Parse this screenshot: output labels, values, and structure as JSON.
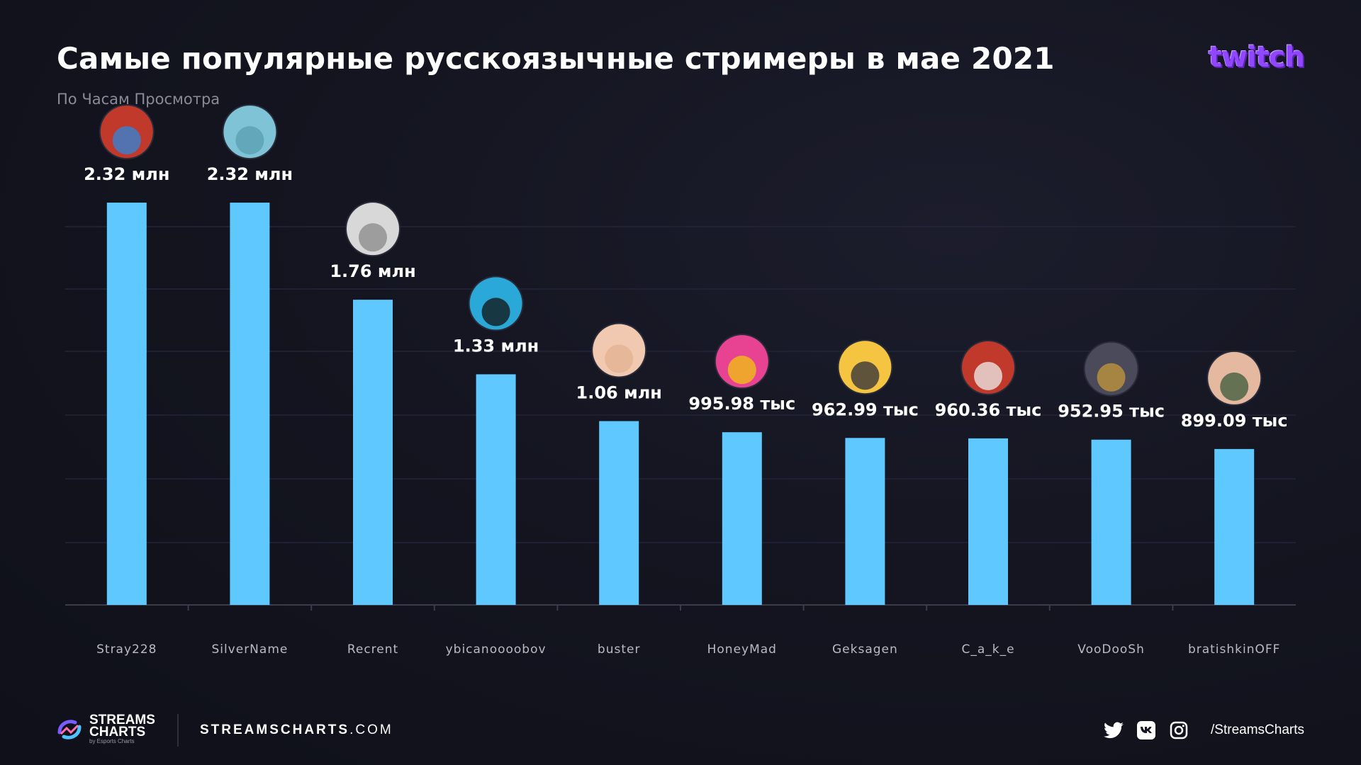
{
  "header": {
    "title": "Самые популярные русскоязычные стримеры в мае 2021",
    "subtitle": "По Часам Просмотра",
    "brand_logo": "twitch"
  },
  "footer": {
    "logo_line1": "STREAMS",
    "logo_line2": "CHARTS",
    "logo_sub": "by Esports Charts",
    "site_bold": "STREAMSCHARTS",
    "site_rest": ".COM",
    "handle": "/StreamsCharts",
    "icons": [
      "twitter-icon",
      "vk-icon",
      "instagram-icon"
    ]
  },
  "colors": {
    "bar": "#5ec8ff",
    "accent": "#9146ff",
    "background": "#141520"
  },
  "chart_data": {
    "type": "bar",
    "categories": [
      "Stray228",
      "SilverName",
      "Recrent",
      "ybicanoooobov",
      "buster",
      "HoneyMad",
      "Geksagen",
      "C_a_k_e",
      "VooDooSh",
      "bratishkinOFF"
    ],
    "values": [
      2320000,
      2320000,
      1760000,
      1330000,
      1060000,
      995980,
      962990,
      960360,
      952950,
      899090
    ],
    "data_labels": [
      "2.32 млн",
      "2.32 млн",
      "1.76 млн",
      "1.33 млн",
      "1.06 млн",
      "995.98 тыс",
      "962.99 тыс",
      "960.36 тыс",
      "952.95 тыс",
      "899.09 тыс"
    ],
    "ylim": [
      0,
      2500000
    ],
    "grid": true,
    "legend": "none"
  }
}
